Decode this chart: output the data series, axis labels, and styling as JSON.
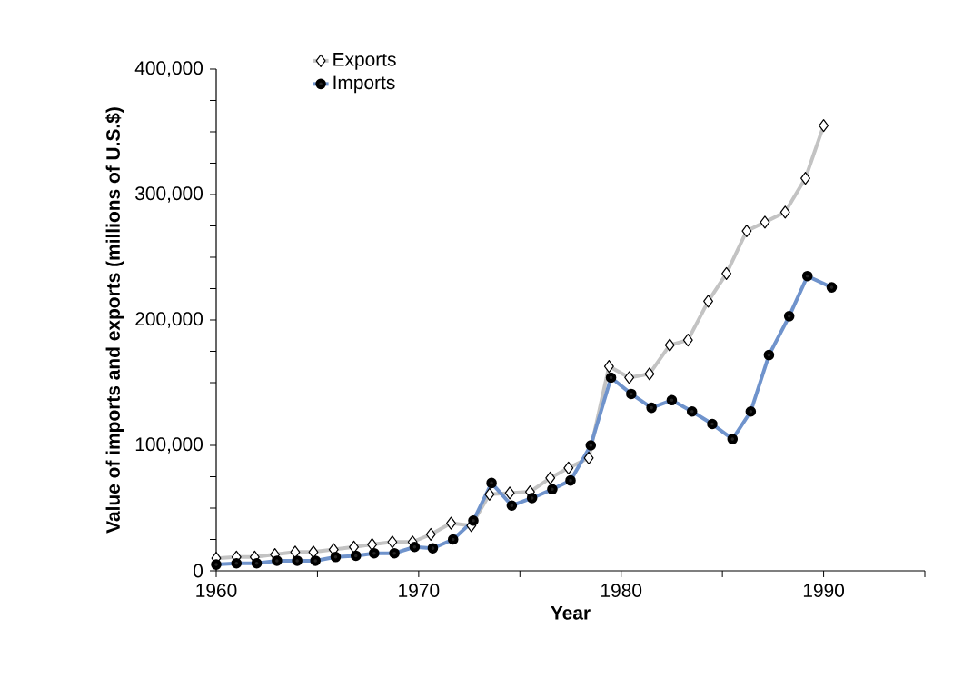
{
  "chart_data": {
    "type": "line",
    "xlabel": "Year",
    "ylabel": "Value of imports and exports (millions of U.S.$)",
    "xlim": [
      1960,
      1995
    ],
    "xticks": [
      1960,
      {
        "value": 1965,
        "label": null
      },
      1970,
      {
        "value": 1975,
        "label": null
      },
      1980,
      {
        "value": 1985,
        "label": null
      },
      1990,
      {
        "value": 1995,
        "label": null
      }
    ],
    "ylim": [
      0,
      400000
    ],
    "yticks": [
      0,
      {
        "value": 25000,
        "label": null
      },
      {
        "value": 50000,
        "label": null
      },
      {
        "value": 75000,
        "label": null
      },
      {
        "value": 100000,
        "label": "100,000"
      },
      {
        "value": 125000,
        "label": null
      },
      {
        "value": 150000,
        "label": null
      },
      {
        "value": 175000,
        "label": null
      },
      {
        "value": 200000,
        "label": "200,000"
      },
      {
        "value": 225000,
        "label": null
      },
      {
        "value": 250000,
        "label": null
      },
      {
        "value": 275000,
        "label": null
      },
      {
        "value": 300000,
        "label": "300,000"
      },
      {
        "value": 325000,
        "label": null
      },
      {
        "value": 350000,
        "label": null
      },
      {
        "value": 375000,
        "label": null
      },
      {
        "value": 400000,
        "label": "400,000"
      }
    ],
    "legend": "top",
    "series": [
      {
        "name": "Exports",
        "color": "#c3c3c3",
        "marker": "diamond",
        "x": [
          1960.0,
          1961.0,
          1961.9,
          1962.9,
          1963.9,
          1964.8,
          1965.8,
          1966.8,
          1967.7,
          1968.7,
          1969.7,
          1970.6,
          1971.6,
          1972.6,
          1973.5,
          1974.5,
          1975.5,
          1976.5,
          1977.4,
          1978.4,
          1979.4,
          1980.4,
          1981.4,
          1982.4,
          1983.3,
          1984.3,
          1985.2,
          1986.2,
          1987.1,
          1988.1,
          1989.1,
          1990.0
        ],
        "values": [
          10000,
          11000,
          11000,
          13000,
          15000,
          15000,
          17000,
          19000,
          21000,
          23000,
          23000,
          29000,
          38000,
          36000,
          61000,
          62000,
          63000,
          74000,
          82000,
          90000,
          163000,
          154000,
          157000,
          180000,
          184000,
          215000,
          237000,
          271000,
          278000,
          286000,
          313000,
          355000
        ]
      },
      {
        "name": "Imports",
        "color": "#6f93cc",
        "marker": "circle",
        "x": [
          1960.0,
          1961.0,
          1962.0,
          1963.0,
          1964.0,
          1964.9,
          1965.9,
          1966.9,
          1967.8,
          1968.8,
          1969.8,
          1970.7,
          1971.7,
          1972.7,
          1973.6,
          1974.6,
          1975.6,
          1976.6,
          1977.5,
          1978.5,
          1979.5,
          1980.5,
          1981.5,
          1982.5,
          1983.5,
          1984.5,
          1985.5,
          1986.4,
          1987.3,
          1988.3,
          1989.2,
          1990.4
        ],
        "values": [
          5000,
          6000,
          6000,
          8000,
          8000,
          8000,
          11000,
          12000,
          14000,
          14000,
          19000,
          18000,
          25000,
          40000,
          70000,
          52000,
          58000,
          65000,
          72000,
          100000,
          154000,
          141000,
          130000,
          136000,
          127000,
          117000,
          105000,
          127000,
          172000,
          203000,
          235000,
          226000
        ]
      }
    ]
  }
}
